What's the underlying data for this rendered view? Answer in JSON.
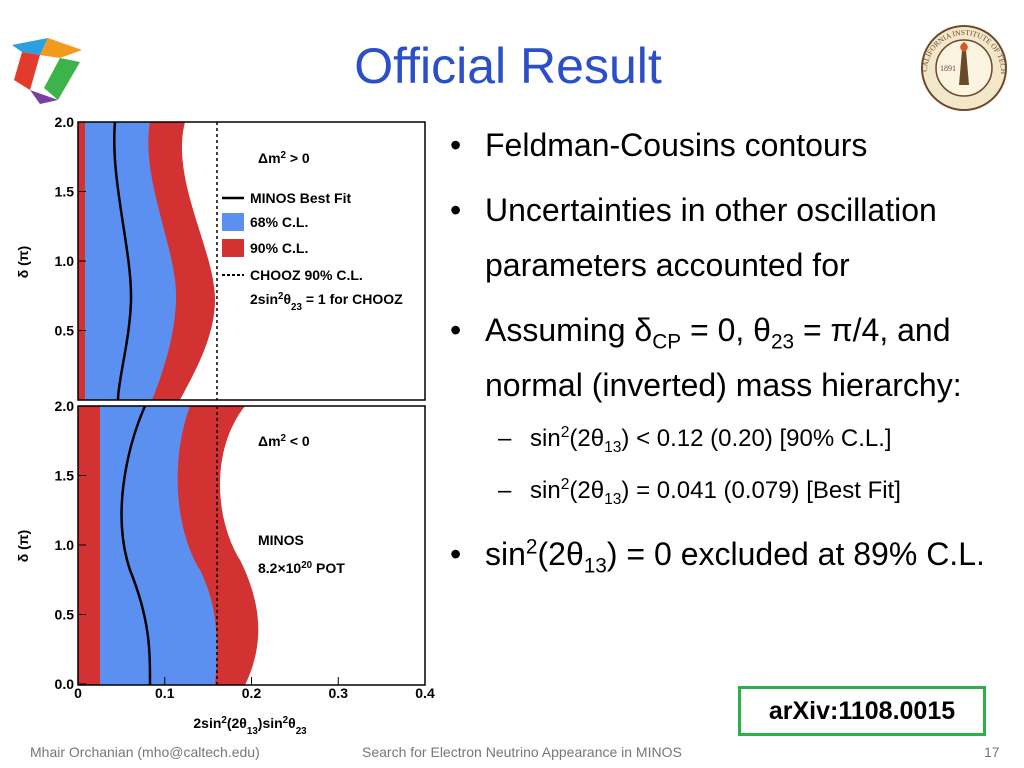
{
  "title": "Official Result",
  "logo_seal": {
    "name": "CALIFORNIA INSTITUTE OF TECHNOLOGY",
    "year": "1891"
  },
  "plot": {
    "y_label": "δ (π)",
    "x_label": [
      "2sin",
      {
        "sup": "2"
      },
      "(2θ",
      {
        "sub": "13"
      },
      ")sin",
      {
        "sup": "2"
      },
      "θ",
      {
        "sub": "23"
      }
    ],
    "x_ticks": [
      "0",
      "0.1",
      "0.2",
      "0.3",
      "0.4"
    ],
    "top_panel": {
      "y_ticks": [
        "2.0",
        "1.5",
        "1.0",
        "0.5"
      ],
      "header": [
        "Δm",
        {
          "sup": "2"
        },
        " > 0"
      ],
      "legend": [
        "MINOS Best Fit",
        "68% C.L.",
        "90% C.L.",
        "CHOOZ 90% C.L.",
        [
          "2sin",
          {
            "sup": "2"
          },
          "θ",
          {
            "sub": "23"
          },
          " = 1 for CHOOZ"
        ]
      ]
    },
    "bottom_panel": {
      "y_ticks": [
        "2.0",
        "1.5",
        "1.0",
        "0.5",
        "0.0"
      ],
      "header": [
        "Δm",
        {
          "sup": "2"
        },
        " < 0"
      ],
      "experiment": "MINOS",
      "exposure": [
        "8.2×10",
        {
          "sup": "20"
        },
        " POT"
      ]
    }
  },
  "bullets": [
    {
      "text": "Feldman-Cousins contours"
    },
    {
      "text": "Uncertainties in other oscillation parameters accounted for"
    },
    {
      "text": [
        "Assuming δ",
        {
          "sub": "CP"
        },
        " = 0, θ",
        {
          "sub": "23"
        },
        " = π/4, and normal (inverted) mass hierarchy:"
      ],
      "subs": [
        [
          "sin",
          {
            "sup": "2"
          },
          "(2θ",
          {
            "sub": "13"
          },
          ") < 0.12 (0.20) [90% C.L.]"
        ],
        [
          "sin",
          {
            "sup": "2"
          },
          "(2θ",
          {
            "sub": "13"
          },
          ") = 0.041 (0.079) [Best Fit]"
        ]
      ]
    },
    {
      "text": [
        "sin",
        {
          "sup": "2"
        },
        "(2θ",
        {
          "sub": "13"
        },
        ") = 0 excluded at 89% C.L."
      ]
    }
  ],
  "reference": "arXiv:1108.0015",
  "footer": {
    "author": "Mhair Orchanian (mho@caltech.edu)",
    "talk": "Search for Electron Neutrino Appearance in MINOS",
    "page": "17"
  }
}
